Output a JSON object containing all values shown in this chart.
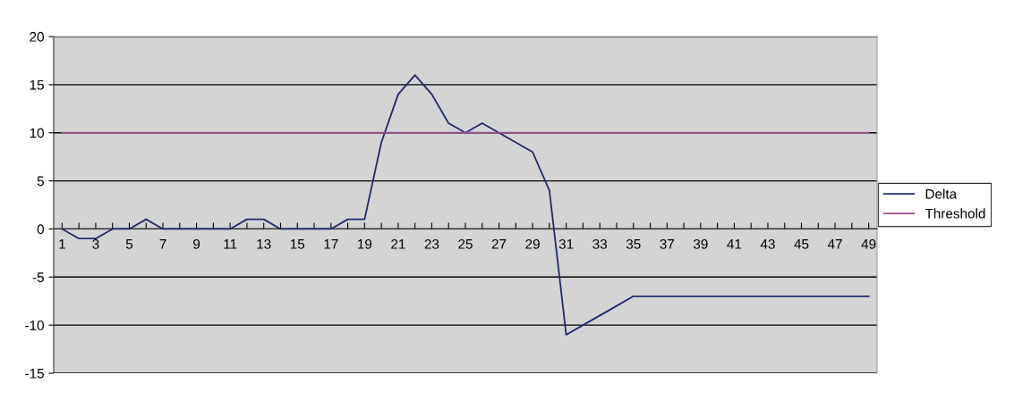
{
  "chart_data": {
    "type": "line",
    "categories": [
      "1",
      null,
      "3",
      null,
      "5",
      null,
      "7",
      null,
      "9",
      null,
      "11",
      null,
      "13",
      null,
      "15",
      null,
      "17",
      null,
      "19",
      null,
      "21",
      null,
      "23",
      null,
      "25",
      null,
      "27",
      null,
      "29",
      null,
      "31",
      null,
      "33",
      null,
      "35",
      null,
      "37",
      null,
      "39",
      null,
      "41",
      null,
      "43",
      null,
      "45",
      null,
      "47",
      null,
      "49"
    ],
    "series": [
      {
        "name": "Delta",
        "color": "#1f2a6b",
        "values": [
          0,
          -1,
          -1,
          0,
          0,
          1,
          0,
          0,
          0,
          0,
          0,
          1,
          1,
          0,
          0,
          0,
          0,
          1,
          1,
          9,
          14,
          16,
          14,
          11,
          10,
          11,
          10,
          9,
          8,
          4,
          -11,
          -10,
          -9,
          -8,
          -7,
          -7,
          -7,
          -7,
          -7,
          -7,
          -7,
          -7,
          -7,
          -7,
          -7,
          -7,
          -7,
          -7,
          -7
        ]
      },
      {
        "name": "Threshold",
        "color": "#a0508f",
        "values": [
          10,
          10,
          10,
          10,
          10,
          10,
          10,
          10,
          10,
          10,
          10,
          10,
          10,
          10,
          10,
          10,
          10,
          10,
          10,
          10,
          10,
          10,
          10,
          10,
          10,
          10,
          10,
          10,
          10,
          10,
          10,
          10,
          10,
          10,
          10,
          10,
          10,
          10,
          10,
          10,
          10,
          10,
          10,
          10,
          10,
          10,
          10,
          10,
          10
        ]
      }
    ],
    "ylim": [
      -15,
      20
    ],
    "yticks": [
      -15,
      -10,
      -5,
      0,
      5,
      10,
      15,
      20
    ],
    "grid": "y",
    "legend": "right",
    "marker": "none",
    "line_style": "solid"
  }
}
